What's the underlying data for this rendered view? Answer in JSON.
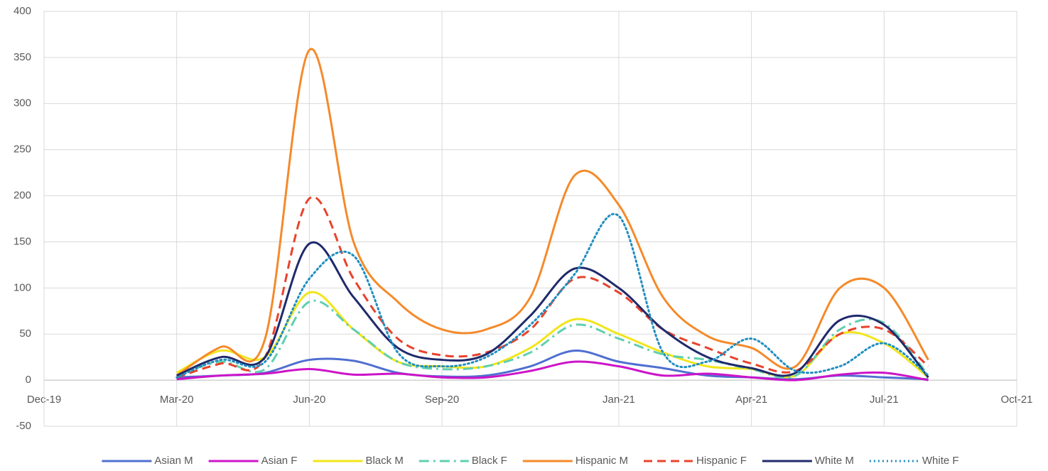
{
  "chart_data": {
    "type": "line",
    "x": [
      "2020-03",
      "2020-04",
      "2020-05",
      "2020-06",
      "2020-07",
      "2020-08",
      "2020-09",
      "2020-10",
      "2020-11",
      "2020-12",
      "2021-01",
      "2021-02",
      "2021-03",
      "2021-04",
      "2021-05",
      "2021-06",
      "2021-07",
      "2021-08"
    ],
    "series": [
      {
        "name": "Asian M",
        "color": "#4f6fd0",
        "dash": "solid",
        "values": [
          3,
          5,
          8,
          22,
          21,
          8,
          4,
          5,
          15,
          32,
          20,
          13,
          5,
          3,
          1,
          5,
          3,
          1
        ]
      },
      {
        "name": "Asian F",
        "color": "#cc14c8",
        "dash": "solid",
        "values": [
          1,
          5,
          7,
          12,
          6,
          7,
          3,
          3,
          10,
          20,
          15,
          5,
          7,
          3,
          0,
          6,
          8,
          0
        ]
      },
      {
        "name": "Black M",
        "color": "#f2e51a",
        "dash": "solid",
        "values": [
          8,
          32,
          25,
          95,
          55,
          20,
          15,
          15,
          35,
          66,
          50,
          30,
          15,
          12,
          5,
          50,
          40,
          3
        ]
      },
      {
        "name": "Black F",
        "color": "#5fcfb0",
        "dash": "dashdot",
        "values": [
          5,
          20,
          12,
          85,
          55,
          20,
          12,
          15,
          30,
          60,
          45,
          28,
          22,
          12,
          5,
          55,
          62,
          5
        ]
      },
      {
        "name": "Hispanic M",
        "color": "#f58a2a",
        "dash": "solid",
        "values": [
          5,
          36,
          45,
          358,
          150,
          85,
          55,
          55,
          90,
          222,
          190,
          90,
          48,
          35,
          15,
          100,
          100,
          22
        ]
      },
      {
        "name": "Hispanic F",
        "color": "#e8432c",
        "dash": "dashed",
        "values": [
          3,
          18,
          25,
          197,
          110,
          45,
          27,
          30,
          55,
          110,
          95,
          55,
          35,
          18,
          10,
          50,
          55,
          15
        ]
      },
      {
        "name": "White M",
        "color": "#1f2a6b",
        "dash": "solid",
        "values": [
          5,
          25,
          25,
          148,
          90,
          35,
          22,
          28,
          70,
          121,
          100,
          55,
          25,
          13,
          8,
          65,
          60,
          3
        ]
      },
      {
        "name": "White F",
        "color": "#1f8ec0",
        "dash": "dotted",
        "values": [
          3,
          22,
          20,
          110,
          135,
          30,
          15,
          25,
          60,
          115,
          178,
          30,
          20,
          45,
          10,
          15,
          40,
          5
        ]
      }
    ],
    "xlim": [
      "2019-12",
      "2021-10"
    ],
    "xticks": [
      {
        "value": "2019-12",
        "label": "Dec-19"
      },
      {
        "value": "2020-03",
        "label": "Mar-20"
      },
      {
        "value": "2020-06",
        "label": "Jun-20"
      },
      {
        "value": "2020-09",
        "label": "Sep-20"
      },
      {
        "value": "2021-01",
        "label": "Jan-21"
      },
      {
        "value": "2021-04",
        "label": "Apr-21"
      },
      {
        "value": "2021-07",
        "label": "Jul-21"
      },
      {
        "value": "2021-10",
        "label": "Oct-21"
      }
    ],
    "ylim": [
      -50,
      400
    ],
    "yticks": [
      -50,
      0,
      50,
      100,
      150,
      200,
      250,
      300,
      350,
      400
    ],
    "grid": true,
    "smooth": true,
    "legend": "bottom"
  }
}
